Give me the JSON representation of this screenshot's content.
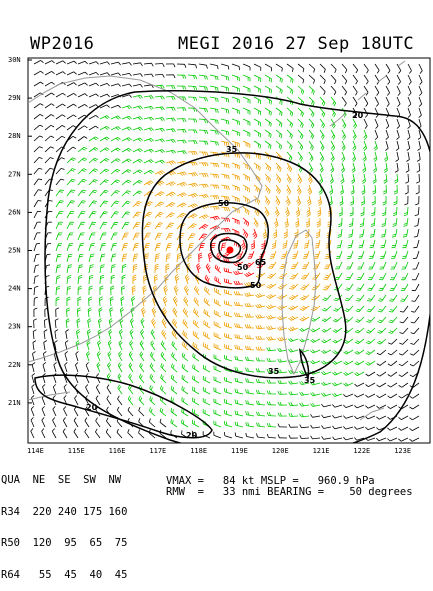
{
  "header": {
    "basin_year": "WP2016",
    "storm_time": "MEGI 2016 27 Sep 18UTC"
  },
  "axes": {
    "lat_labels": [
      "30N",
      "29N",
      "28N",
      "27N",
      "26N",
      "25N",
      "24N",
      "23N",
      "22N",
      "21N"
    ],
    "lon_labels": [
      "114E",
      "115E",
      "116E",
      "117E",
      "118E",
      "119E",
      "120E",
      "121E",
      "122E",
      "123E"
    ]
  },
  "contour_labels": {
    "r20_top": "20",
    "r35_top": "35",
    "r50_top": "50",
    "r50_east": "50",
    "r50_inner": "50",
    "r65": "65",
    "r35_south": "35",
    "r35_se": "35",
    "r20_sw": "20",
    "r20_bottom": "20"
  },
  "wind_table": {
    "header_row": "QUA  NE  SE  SW  NW",
    "r34_row": "R34  220 240 175 160",
    "r50_row": "R50  120  95  65  75",
    "r64_row": "R64   55  45  40  45",
    "vmax_text": "VMAX =   84 kt MSLP =   960.9 hPa",
    "rmw_text": "RMW  =   33 nmi BEARING =    50 degrees"
  },
  "colors": {
    "barb_weak": "#000000",
    "barb_34kt": "#00cc00",
    "barb_50kt": "#f0a000",
    "barb_64kt": "#ff0000",
    "coast": "#999999",
    "center_marker": "#ff0000"
  }
}
